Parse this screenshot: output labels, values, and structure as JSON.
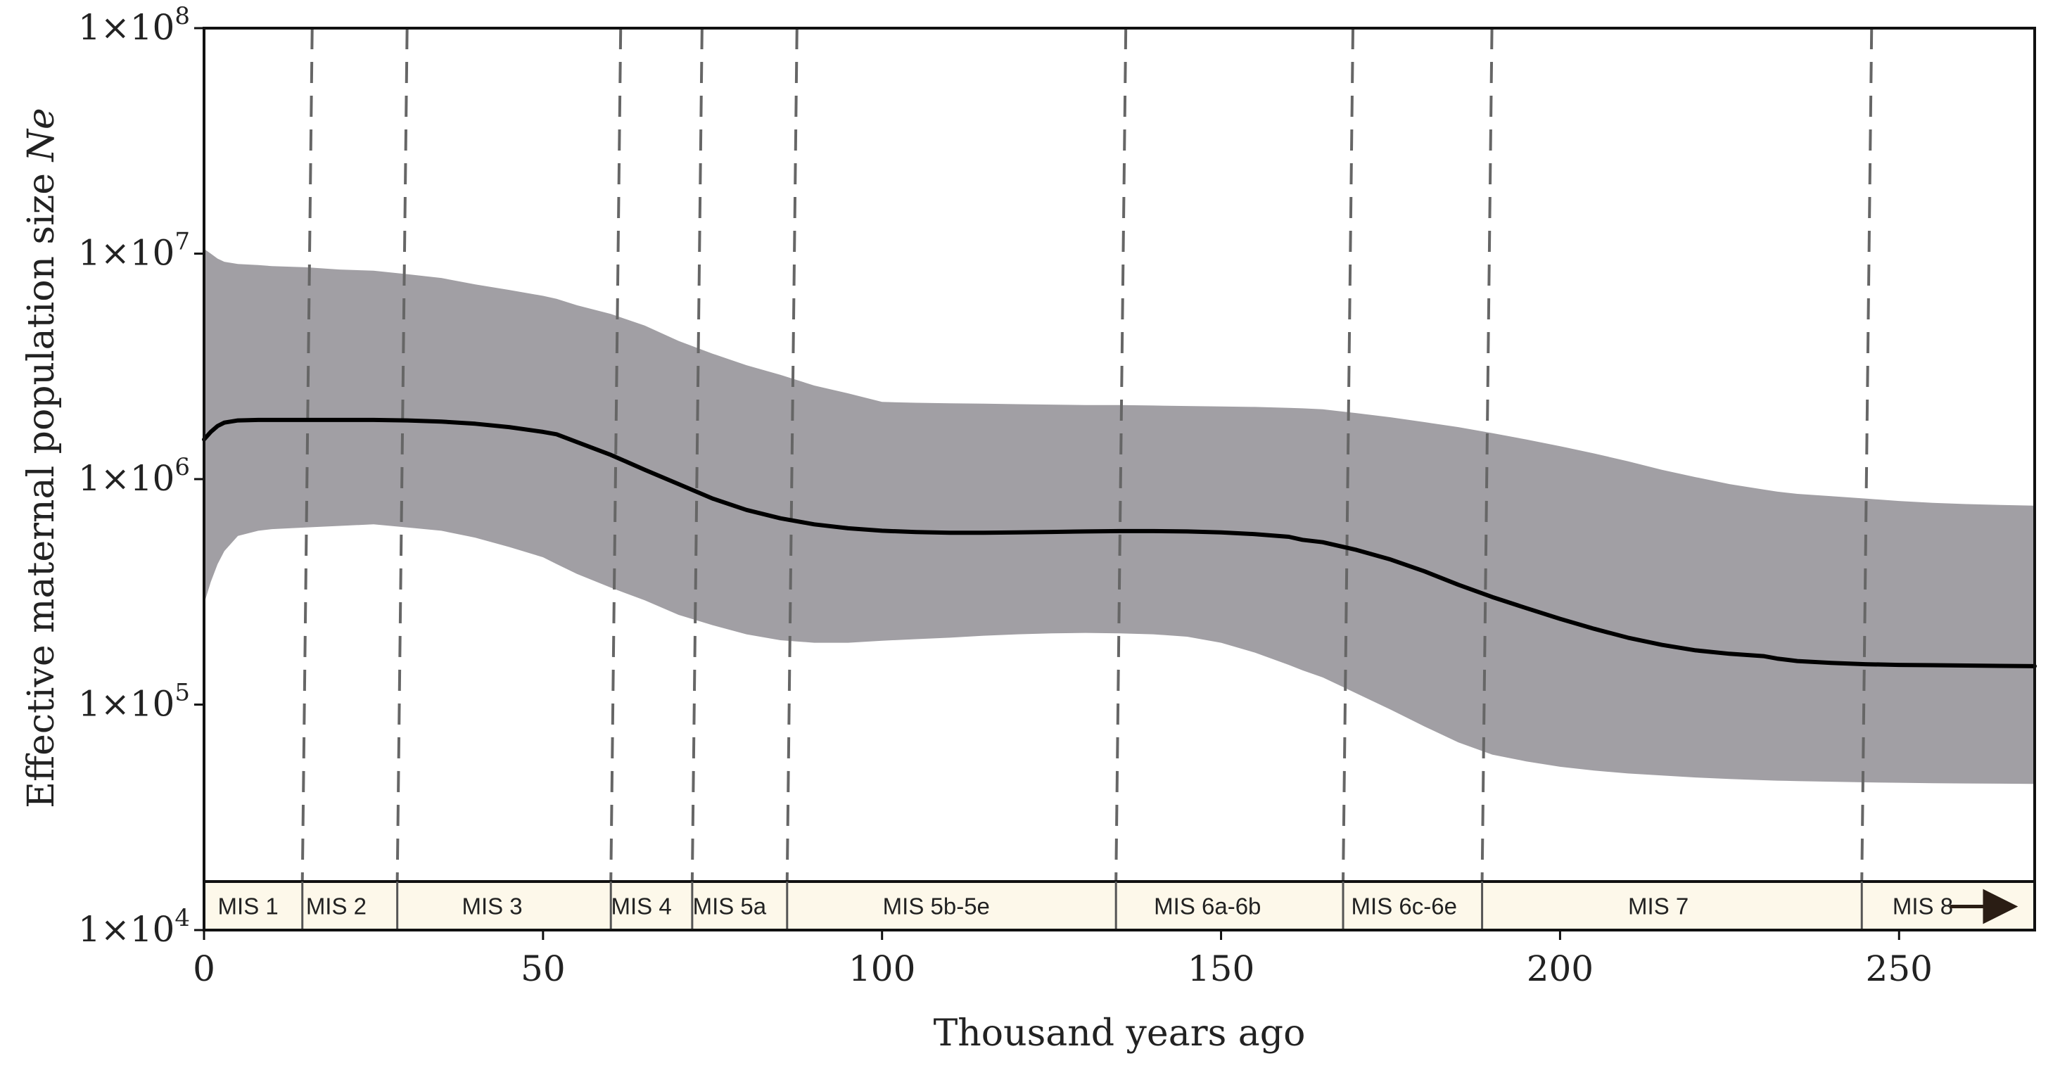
{
  "chart_data": {
    "type": "area",
    "title": "",
    "xlabel": "Thousand years ago",
    "ylabel": "Effective maternal population size",
    "ylabel_italic": "Ne",
    "xlim": [
      0,
      270
    ],
    "ylim": [
      10000,
      100000000
    ],
    "yscale": "log",
    "x_ticks": [
      0,
      50,
      100,
      150,
      200,
      250
    ],
    "x_tick_labels": [
      "0",
      "50",
      "100",
      "150",
      "200",
      "250"
    ],
    "y_ticks": [
      {
        "value": 100000000,
        "mantissa": "1×10",
        "exp": "8"
      },
      {
        "value": 10000000,
        "mantissa": "1×10",
        "exp": "7"
      },
      {
        "value": 1000000,
        "mantissa": "1×10",
        "exp": "6"
      },
      {
        "value": 100000,
        "mantissa": "1×10",
        "exp": "5"
      },
      {
        "value": 10000,
        "mantissa": "1×10",
        "exp": "4"
      }
    ],
    "colors": {
      "band": "#a19fa4",
      "median": "#000000",
      "strip": "#fdf8ea",
      "divider": "#666666",
      "frame": "#111111"
    },
    "x": [
      0,
      1,
      2,
      3,
      5,
      8,
      10,
      15,
      20,
      25,
      30,
      35,
      40,
      45,
      50,
      52,
      55,
      60,
      65,
      70,
      75,
      80,
      85,
      90,
      95,
      100,
      105,
      110,
      115,
      120,
      125,
      130,
      135,
      140,
      145,
      150,
      155,
      160,
      162,
      165,
      170,
      175,
      180,
      185,
      190,
      195,
      200,
      205,
      210,
      215,
      220,
      225,
      230,
      232,
      235,
      240,
      245,
      250,
      255,
      260,
      265,
      270
    ],
    "series": [
      {
        "name": "median",
        "values": [
          1500000,
          1620000,
          1720000,
          1780000,
          1820000,
          1830000,
          1830000,
          1830000,
          1830000,
          1830000,
          1820000,
          1800000,
          1760000,
          1700000,
          1620000,
          1580000,
          1460000,
          1280000,
          1100000,
          950000,
          820000,
          730000,
          670000,
          630000,
          605000,
          590000,
          582000,
          578000,
          578000,
          580000,
          583000,
          586000,
          588000,
          588000,
          586000,
          580000,
          570000,
          555000,
          538000,
          525000,
          485000,
          440000,
          390000,
          340000,
          300000,
          268000,
          240000,
          217000,
          198000,
          184000,
          174000,
          168000,
          164000,
          160000,
          156000,
          153000,
          151000,
          150000,
          149500,
          149000,
          148500,
          148000
        ]
      },
      {
        "name": "upper",
        "values": [
          10500000,
          10000000,
          9500000,
          9200000,
          9000000,
          8900000,
          8800000,
          8700000,
          8500000,
          8400000,
          8100000,
          7800000,
          7300000,
          6900000,
          6500000,
          6300000,
          5900000,
          5400000,
          4800000,
          4100000,
          3600000,
          3200000,
          2900000,
          2600000,
          2400000,
          2200000,
          2180000,
          2170000,
          2160000,
          2150000,
          2140000,
          2130000,
          2130000,
          2120000,
          2110000,
          2100000,
          2090000,
          2070000,
          2060000,
          2040000,
          1960000,
          1880000,
          1790000,
          1700000,
          1600000,
          1500000,
          1400000,
          1300000,
          1200000,
          1100000,
          1020000,
          950000,
          900000,
          880000,
          860000,
          840000,
          820000,
          800000,
          785000,
          775000,
          768000,
          762000
        ]
      },
      {
        "name": "lower",
        "values": [
          280000,
          350000,
          420000,
          480000,
          560000,
          590000,
          600000,
          610000,
          620000,
          630000,
          610000,
          590000,
          550000,
          500000,
          450000,
          420000,
          380000,
          330000,
          290000,
          250000,
          225000,
          205000,
          193000,
          188000,
          188000,
          192000,
          195000,
          198000,
          202000,
          205000,
          207000,
          208000,
          207000,
          205000,
          200000,
          188000,
          170000,
          150000,
          142000,
          132000,
          112000,
          95000,
          80000,
          68000,
          60000,
          56000,
          53000,
          51000,
          49500,
          48500,
          47500,
          46800,
          46200,
          46000,
          45800,
          45500,
          45200,
          45000,
          44800,
          44700,
          44600,
          44500
        ]
      }
    ],
    "mis_boundaries": [
      14.5,
      28.5,
      60,
      72,
      86,
      134.5,
      168,
      188.5,
      244.5
    ],
    "mis_stages": [
      {
        "label": "MIS 1",
        "x": 6.5
      },
      {
        "label": "MIS 2",
        "x": 19.5
      },
      {
        "label": "MIS 3",
        "x": 42.5
      },
      {
        "label": "MIS 4",
        "x": 64.5
      },
      {
        "label": "MIS 5a",
        "x": 77.5
      },
      {
        "label": "MIS 5b-5e",
        "x": 108
      },
      {
        "label": "MIS 6a-6b",
        "x": 148
      },
      {
        "label": "MIS 6c-6e",
        "x": 177
      },
      {
        "label": "MIS 7",
        "x": 214.5
      },
      {
        "label": "MIS 8",
        "x": 253.5
      }
    ]
  }
}
